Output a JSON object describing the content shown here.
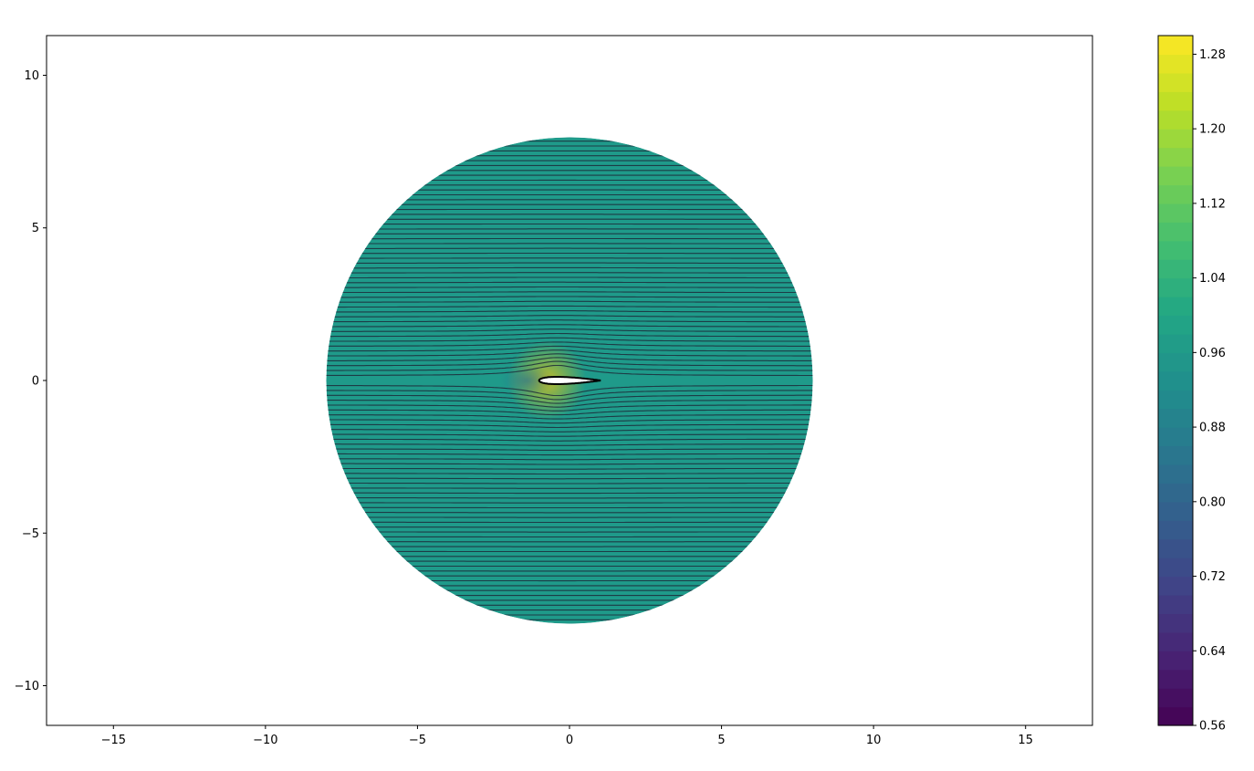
{
  "chart_data": {
    "type": "contour",
    "title": "",
    "xlabel": "",
    "ylabel": "",
    "xlim": [
      -17.2,
      17.2
    ],
    "ylim": [
      -11.3,
      11.3
    ],
    "xticks": [
      -15,
      -10,
      -5,
      0,
      5,
      10,
      15
    ],
    "xtick_labels": [
      "−15",
      "−10",
      "−5",
      "0",
      "5",
      "10",
      "15"
    ],
    "yticks": [
      10,
      5,
      0,
      -5,
      -10
    ],
    "ytick_labels": [
      "10",
      "5",
      "0",
      "−5",
      "−10"
    ],
    "field": {
      "description": "Filled contour of a velocity-magnitude field around an airfoil, on a circular domain",
      "domain_center": [
        0,
        0
      ],
      "domain_radius": 8,
      "freestream_value": 1.0,
      "min_value": 0.56,
      "max_value": 1.3,
      "streamline_spacing": 0.16,
      "colors": {
        "freestream": "#1f9a8a",
        "streamline": "#1d2b3a",
        "high_speed": "#d9c21a",
        "low_speed": "#2c6e8e"
      }
    },
    "airfoil": {
      "chord_start": -1.0,
      "chord_end": 1.0,
      "max_thickness": 0.24,
      "fill": "#ffffff",
      "edge": "#000000"
    },
    "colorbar": {
      "vmin": 0.56,
      "vmax": 1.3,
      "levels": 37,
      "colormap": "viridis",
      "ticks": [
        1.28,
        1.2,
        1.12,
        1.04,
        0.96,
        0.88,
        0.8,
        0.72,
        0.64,
        0.56
      ],
      "tick_labels": [
        "1.28",
        "1.20",
        "1.12",
        "1.04",
        "0.96",
        "0.88",
        "0.80",
        "0.72",
        "0.64",
        "0.56"
      ]
    }
  }
}
